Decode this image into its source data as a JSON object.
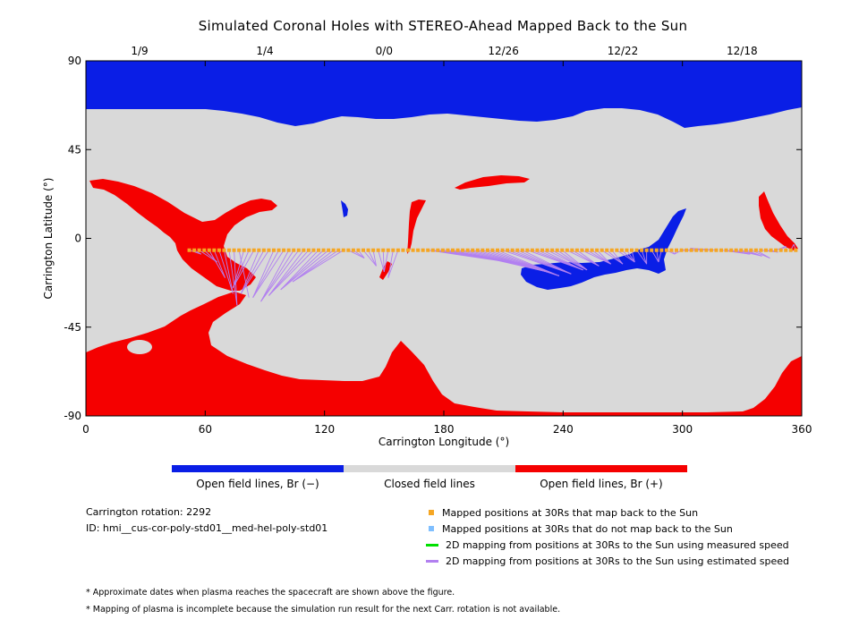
{
  "chart_data": {
    "type": "map",
    "title": "Simulated Coronal Holes with STEREO-Ahead Mapped Back to the Sun",
    "xlabel": "Carrington Longitude (°)",
    "ylabel": "Carrington Latitude (°)",
    "xlim": [
      0,
      360
    ],
    "ylim": [
      -90,
      90
    ],
    "xticks": [
      0,
      60,
      120,
      180,
      240,
      300,
      360
    ],
    "yticks": [
      90,
      45,
      0,
      -45,
      -90
    ],
    "top_date_labels": [
      {
        "lon": 27,
        "label": "1/9"
      },
      {
        "lon": 90,
        "label": "1/4"
      },
      {
        "lon": 150,
        "label": "0/0"
      },
      {
        "lon": 210,
        "label": "12/26"
      },
      {
        "lon": 270,
        "label": "12/22"
      },
      {
        "lon": 330,
        "label": "12/18"
      }
    ],
    "colors": {
      "open_negative": "#0a1ee6",
      "closed": "#d9d9d9",
      "open_positive": "#f50000",
      "mapped_back": "#f5a623",
      "not_mapped": "#7fbfff",
      "measured_speed": "#00e000",
      "estimated_speed": "#b280f0"
    },
    "mapped_positions_lat": -6,
    "mapped_positions_lon_range": [
      52,
      358
    ],
    "mapped_positions_step": 2.5,
    "footpoint_groups": [
      {
        "lon_start": 52,
        "lon_end": 78,
        "target": [
          [
            58,
            -8
          ],
          [
            66,
            -12
          ],
          [
            70,
            -20
          ],
          [
            74,
            -28
          ],
          [
            76,
            -34
          ],
          [
            82,
            -30
          ]
        ]
      },
      {
        "lon_start": 78,
        "lon_end": 130,
        "target": [
          [
            74,
            -25
          ],
          [
            78,
            -28
          ],
          [
            84,
            -30
          ],
          [
            88,
            -32
          ],
          [
            92,
            -29
          ],
          [
            98,
            -26
          ],
          [
            104,
            -22
          ]
        ]
      },
      {
        "lon_start": 130,
        "lon_end": 158,
        "target": [
          [
            140,
            -10
          ],
          [
            146,
            -14
          ],
          [
            150,
            -17
          ],
          [
            152,
            -20
          ]
        ]
      },
      {
        "lon_start": 170,
        "lon_end": 230,
        "target": [
          [
            226,
            -14
          ],
          [
            232,
            -17
          ],
          [
            238,
            -19
          ],
          [
            244,
            -18
          ],
          [
            250,
            -16
          ]
        ]
      },
      {
        "lon_start": 230,
        "lon_end": 290,
        "target": [
          [
            252,
            -16
          ],
          [
            258,
            -14
          ],
          [
            264,
            -13
          ],
          [
            270,
            -13
          ],
          [
            276,
            -12
          ],
          [
            282,
            -13
          ],
          [
            288,
            -12
          ]
        ]
      },
      {
        "lon_start": 290,
        "lon_end": 318,
        "target": [
          [
            296,
            -8
          ],
          [
            300,
            -6
          ],
          [
            304,
            -5
          ]
        ]
      },
      {
        "lon_start": 318,
        "lon_end": 358,
        "target": [
          [
            334,
            -8
          ],
          [
            340,
            -9
          ],
          [
            344,
            -10
          ],
          [
            348,
            -7
          ],
          [
            352,
            -4
          ],
          [
            356,
            -3
          ]
        ]
      }
    ]
  },
  "colorbar": {
    "labels": [
      "Open field lines, Br (−)",
      "Closed field lines",
      "Open field lines, Br (+)"
    ]
  },
  "info": {
    "rotation": "Carrington rotation: 2292",
    "id": "ID: hmi__cus-cor-poly-std01__med-hel-poly-std01"
  },
  "legend": [
    {
      "label": "Mapped positions at 30Rs that map back to the Sun",
      "kind": "square",
      "color": "#f5a623"
    },
    {
      "label": "Mapped positions at 30Rs that do not map back to the Sun",
      "kind": "square",
      "color": "#7fbfff"
    },
    {
      "label": "2D mapping from positions at 30Rs to the Sun using measured speed",
      "kind": "line",
      "color": "#00e000"
    },
    {
      "label": "2D mapping from positions at 30Rs to the Sun using estimated speed",
      "kind": "line",
      "color": "#b280f0"
    }
  ],
  "notes": [
    "* Approximate dates when plasma reaches the spacecraft are shown above the figure.",
    "* Mapping of plasma is incomplete because the simulation run result for the next Carr. rotation is not available."
  ]
}
